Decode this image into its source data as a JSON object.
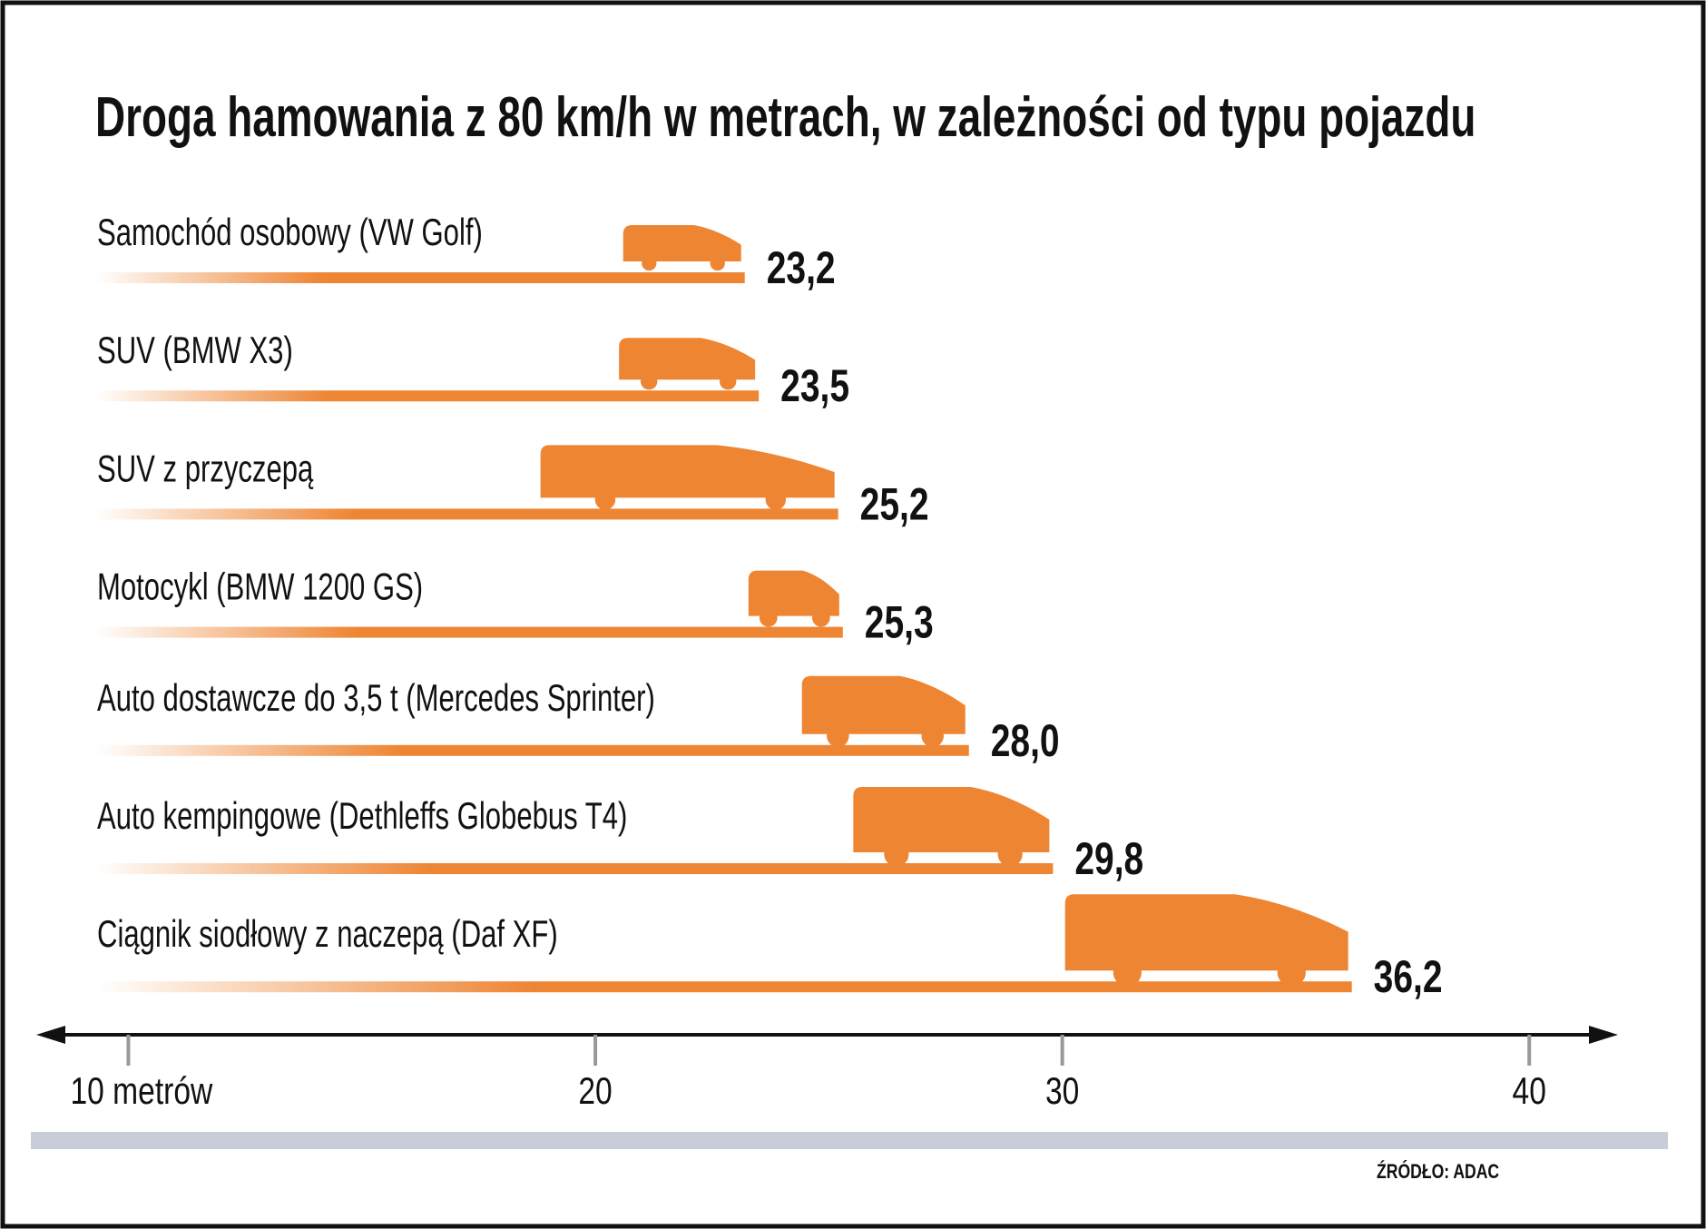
{
  "chart_data": {
    "type": "bar",
    "orientation": "horizontal",
    "title": "Droga hamowania z 80 km/h w metrach, w zależności od typu pojazdu",
    "categories": [
      "Samochód osobowy (VW Golf)",
      "SUV (BMW X3)",
      "SUV z przyczepą",
      "Motocykl (BMW 1200 GS)",
      "Auto dostawcze do 3,5 t (Mercedes Sprinter)",
      "Auto kempingowe (Dethleffs Globebus T4)",
      "Ciągnik siodłowy z naczepą (Daf XF)"
    ],
    "values": [
      23.2,
      23.5,
      25.2,
      25.3,
      28.0,
      29.8,
      36.2
    ],
    "value_labels": [
      "23,2",
      "23,5",
      "25,2",
      "25,3",
      "28,0",
      "29,8",
      "36,2"
    ],
    "color": "#ee8533",
    "xlim": [
      8.1,
      41.9
    ],
    "xticks": [
      {
        "value": 10,
        "label": "10 metrów"
      },
      20,
      30,
      40
    ],
    "source": "ŹRÓDŁO: ADAC"
  }
}
